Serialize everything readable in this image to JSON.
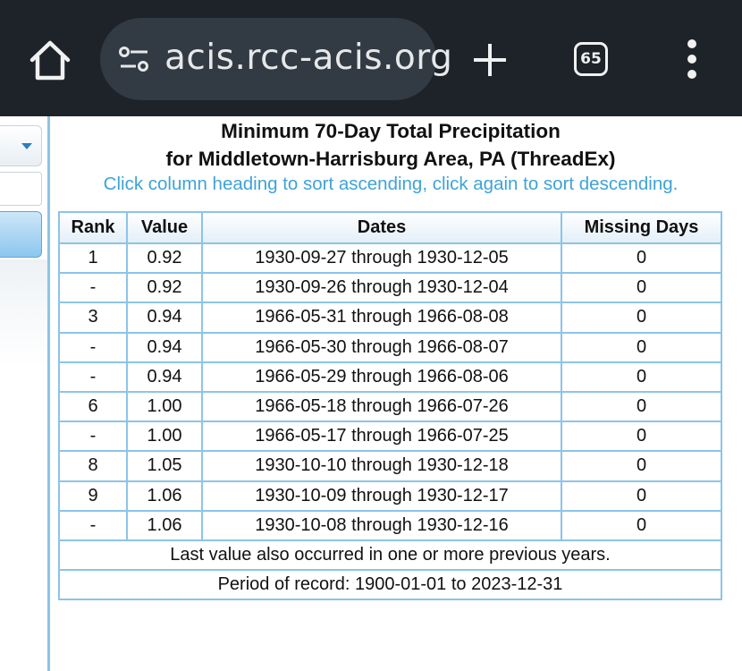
{
  "browser": {
    "url": "acis.rcc-acis.org",
    "tab_count": "65",
    "icons": [
      "home-icon",
      "tune-icon",
      "plus-icon",
      "tabs-icon",
      "more-vert-icon"
    ]
  },
  "page": {
    "title_line1": "Minimum 70-Day Total Precipitation",
    "title_line2": "for Middletown-Harrisburg Area, PA (ThreadEx)",
    "hint": "Click column heading to sort ascending, click again to sort descending."
  },
  "table": {
    "headers": {
      "rank": "Rank",
      "value": "Value",
      "dates": "Dates",
      "missing": "Missing Days"
    },
    "rows": [
      {
        "rank": "1",
        "value": "0.92",
        "dates": "1930-09-27 through 1930-12-05",
        "missing": "0"
      },
      {
        "rank": "-",
        "value": "0.92",
        "dates": "1930-09-26 through 1930-12-04",
        "missing": "0"
      },
      {
        "rank": "3",
        "value": "0.94",
        "dates": "1966-05-31 through 1966-08-08",
        "missing": "0"
      },
      {
        "rank": "-",
        "value": "0.94",
        "dates": "1966-05-30 through 1966-08-07",
        "missing": "0"
      },
      {
        "rank": "-",
        "value": "0.94",
        "dates": "1966-05-29 through 1966-08-06",
        "missing": "0"
      },
      {
        "rank": "6",
        "value": "1.00",
        "dates": "1966-05-18 through 1966-07-26",
        "missing": "0"
      },
      {
        "rank": "-",
        "value": "1.00",
        "dates": "1966-05-17 through 1966-07-25",
        "missing": "0"
      },
      {
        "rank": "8",
        "value": "1.05",
        "dates": "1930-10-10 through 1930-12-18",
        "missing": "0"
      },
      {
        "rank": "9",
        "value": "1.06",
        "dates": "1930-10-09 through 1930-12-17",
        "missing": "0"
      },
      {
        "rank": "-",
        "value": "1.06",
        "dates": "1930-10-08 through 1930-12-16",
        "missing": "0"
      }
    ],
    "footnote": "Last value also occurred in one or more previous years.",
    "period": "Period of record: 1900-01-01 to 2023-12-31"
  },
  "colors": {
    "topbar": "#1d2329",
    "urlbar": "#323b43",
    "accent_border": "#8cc4e8",
    "hint_text": "#3ea3d6"
  }
}
